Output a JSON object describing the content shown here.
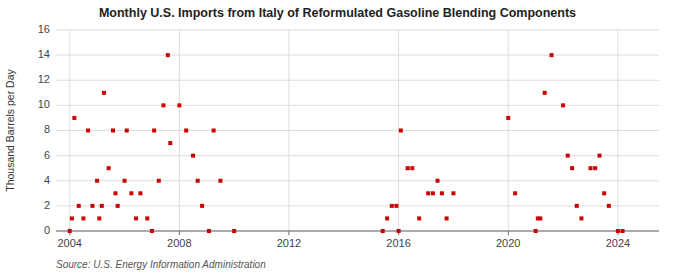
{
  "chart_data": {
    "type": "scatter",
    "title": "Monthly U.S. Imports from Italy of Reformulated Gasoline Blending Components",
    "y_label": "Thousand Barrels per Day",
    "source": "Source: U.S. Energy Information Administration",
    "color": "#cc0000",
    "marker": "square",
    "grid": true,
    "xlim": [
      2003.5,
      2025.5
    ],
    "ylim": [
      0,
      16
    ],
    "xticks": [
      2004,
      2008,
      2012,
      2016,
      2020,
      2024
    ],
    "yticks": [
      0,
      2,
      4,
      6,
      8,
      10,
      12,
      14,
      16
    ],
    "x": [
      2004.0,
      2004.08,
      2004.17,
      2004.33,
      2004.5,
      2004.67,
      2004.83,
      2005.0,
      2005.08,
      2005.17,
      2005.25,
      2005.42,
      2005.58,
      2005.67,
      2005.75,
      2006.0,
      2006.08,
      2006.25,
      2006.42,
      2006.58,
      2006.83,
      2007.0,
      2007.08,
      2007.25,
      2007.42,
      2007.58,
      2007.67,
      2008.0,
      2008.25,
      2008.5,
      2008.67,
      2008.83,
      2009.08,
      2009.25,
      2009.5,
      2010.0,
      2015.42,
      2015.58,
      2015.75,
      2015.92,
      2016.0,
      2016.08,
      2016.33,
      2016.5,
      2016.75,
      2017.08,
      2017.25,
      2017.42,
      2017.58,
      2017.75,
      2018.0,
      2020.0,
      2020.25,
      2021.0,
      2021.08,
      2021.17,
      2021.33,
      2021.58,
      2022.0,
      2022.17,
      2022.33,
      2022.5,
      2022.67,
      2023.0,
      2023.17,
      2023.33,
      2023.5,
      2023.67,
      2024.0,
      2024.17
    ],
    "values": [
      0,
      1,
      9,
      2,
      1,
      8,
      2,
      4,
      1,
      2,
      11,
      5,
      8,
      3,
      2,
      4,
      8,
      3,
      1,
      3,
      1,
      0,
      8,
      4,
      10,
      14,
      7,
      10,
      8,
      6,
      4,
      2,
      0,
      8,
      4,
      0,
      0,
      1,
      2,
      2,
      0,
      8,
      5,
      5,
      1,
      3,
      3,
      4,
      3,
      1,
      3,
      9,
      3,
      0,
      1,
      1,
      11,
      14,
      10,
      6,
      5,
      2,
      1,
      5,
      5,
      6,
      3,
      2,
      0,
      0
    ]
  }
}
